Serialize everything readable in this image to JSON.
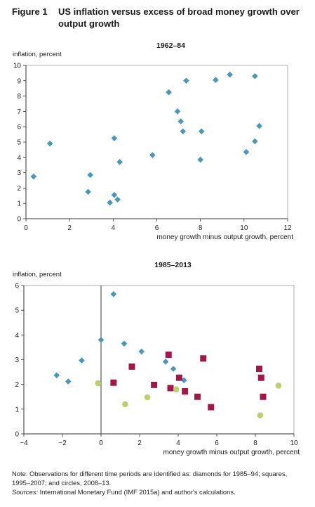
{
  "figure": {
    "label": "Figure 1",
    "title": "US inflation versus excess of broad money growth over output growth"
  },
  "colors": {
    "diamond": "#4a97b8",
    "square": "#a0174a",
    "circle": "#bfcf6e",
    "axis": "#333333",
    "frame": "#9a9a9a"
  },
  "chart_data": [
    {
      "type": "scatter",
      "title": "1962–84",
      "xlabel": "money growth minus output growth, percent",
      "ylabel": "inflation, percent",
      "xlim": [
        0,
        12
      ],
      "ylim": [
        0,
        10
      ],
      "xticks": [
        0,
        2,
        4,
        6,
        8,
        10,
        12
      ],
      "yticks": [
        0,
        1,
        2,
        3,
        4,
        5,
        6,
        7,
        8,
        9,
        10
      ],
      "grid": false,
      "series": [
        {
          "marker": "diamond",
          "points": [
            [
              0.35,
              2.75
            ],
            [
              1.1,
              4.9
            ],
            [
              2.85,
              1.75
            ],
            [
              2.95,
              2.85
            ],
            [
              3.85,
              1.05
            ],
            [
              4.05,
              1.55
            ],
            [
              4.2,
              1.25
            ],
            [
              4.05,
              5.25
            ],
            [
              4.3,
              3.7
            ],
            [
              5.8,
              4.15
            ],
            [
              6.55,
              8.25
            ],
            [
              6.95,
              7.0
            ],
            [
              7.1,
              6.35
            ],
            [
              7.2,
              5.7
            ],
            [
              7.35,
              9.0
            ],
            [
              8.0,
              3.85
            ],
            [
              8.05,
              5.7
            ],
            [
              8.7,
              9.05
            ],
            [
              9.35,
              9.4
            ],
            [
              10.1,
              4.35
            ],
            [
              10.5,
              9.3
            ],
            [
              10.5,
              5.05
            ],
            [
              10.7,
              6.05
            ]
          ]
        }
      ]
    },
    {
      "type": "scatter",
      "title": "1985–2013",
      "xlabel": "money growth minus output growth, percent",
      "ylabel": "inflation, percent",
      "xlim": [
        -4,
        10
      ],
      "ylim": [
        0,
        6
      ],
      "xticks": [
        -4,
        -2,
        0,
        2,
        4,
        6,
        8,
        10
      ],
      "yticks": [
        0,
        1,
        2,
        3,
        4,
        5,
        6
      ],
      "grid": false,
      "zero_line": true,
      "series": [
        {
          "marker": "diamond",
          "points": [
            [
              -2.3,
              2.37
            ],
            [
              -1.7,
              2.12
            ],
            [
              -1.0,
              2.97
            ],
            [
              0.0,
              3.8
            ],
            [
              0.65,
              5.65
            ],
            [
              1.2,
              3.65
            ],
            [
              2.1,
              3.33
            ],
            [
              3.35,
              2.92
            ],
            [
              3.75,
              2.63
            ],
            [
              4.3,
              2.17
            ]
          ]
        },
        {
          "marker": "square",
          "points": [
            [
              0.65,
              2.07
            ],
            [
              1.6,
              2.72
            ],
            [
              2.75,
              1.98
            ],
            [
              3.5,
              3.2
            ],
            [
              3.6,
              1.85
            ],
            [
              4.05,
              2.27
            ],
            [
              4.35,
              1.72
            ],
            [
              5.0,
              1.5
            ],
            [
              5.3,
              3.05
            ],
            [
              5.7,
              1.08
            ],
            [
              8.2,
              2.63
            ],
            [
              8.3,
              2.27
            ],
            [
              8.4,
              1.5
            ]
          ]
        },
        {
          "marker": "circle",
          "points": [
            [
              -0.15,
              2.05
            ],
            [
              1.25,
              1.2
            ],
            [
              2.4,
              1.48
            ],
            [
              3.9,
              1.8
            ],
            [
              8.25,
              0.75
            ],
            [
              9.2,
              1.95
            ]
          ]
        }
      ]
    }
  ],
  "note": {
    "text": "Note: Observations for different time periods are identified as: diamonds for 1985–94; squares, 1995–2007; and circles, 2008–13.",
    "sources_label": "Sources:",
    "sources_text": " International Monetary Fund (IMF 2015a) and author's calculations."
  }
}
